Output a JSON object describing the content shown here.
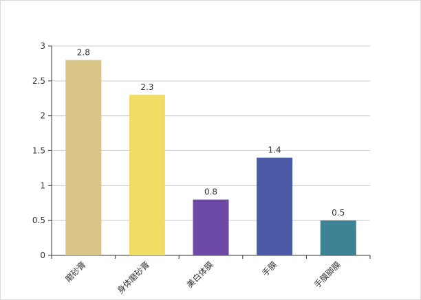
{
  "chart_data": {
    "type": "bar",
    "categories": [
      "磨砂膏",
      "身体磨砂膏",
      "美白体膜",
      "手膜",
      "手膜脚膜"
    ],
    "values": [
      2.8,
      2.3,
      0.8,
      1.4,
      0.5
    ],
    "data_labels": [
      "2.8",
      "2.3",
      "0.8",
      "1.4",
      "0.5"
    ],
    "colors": [
      "#d9c487",
      "#f1dc66",
      "#6c4aa6",
      "#4b5ba8",
      "#3e8296"
    ],
    "ylim": [
      0,
      3
    ],
    "yticks": [
      0,
      0.5,
      1,
      1.5,
      2,
      2.5,
      3
    ],
    "ytick_labels": [
      "0",
      "0.5",
      "1",
      "1.5",
      "2",
      "2.5",
      "3"
    ],
    "grid": true,
    "title": "",
    "xlabel": "",
    "ylabel": ""
  }
}
